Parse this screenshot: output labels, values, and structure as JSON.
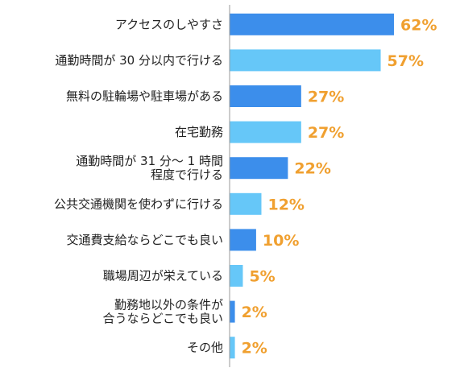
{
  "chart_data": {
    "type": "bar",
    "orientation": "horizontal",
    "categories": [
      [
        "アクセスのしやすさ"
      ],
      [
        "通勤時間が 30 分以内で行ける"
      ],
      [
        "無料の駐輪場や駐車場がある"
      ],
      [
        "在宅勤務"
      ],
      [
        "通勤時間が 31 分～ 1 時間",
        "程度で行ける"
      ],
      [
        "公共交通機関を使わずに行ける"
      ],
      [
        "交通費支給ならどこでも良い"
      ],
      [
        "職場周辺が栄えている"
      ],
      [
        "勤務地以外の条件が",
        "合うならどこでも良い"
      ],
      [
        "その他"
      ]
    ],
    "values": [
      62,
      57,
      27,
      27,
      22,
      12,
      10,
      5,
      2,
      2
    ],
    "value_labels": [
      "62%",
      "57%",
      "27%",
      "27%",
      "22%",
      "12%",
      "10%",
      "5%",
      "2%",
      "2%"
    ],
    "xlim": [
      0,
      62
    ],
    "grid": false,
    "legend": "none",
    "colors": {
      "bar_primary": "#3C8EEB",
      "bar_alternate": "#66C7F8",
      "value_label": "#F0A030",
      "category_label": "#222222",
      "axis": "#999999"
    }
  }
}
